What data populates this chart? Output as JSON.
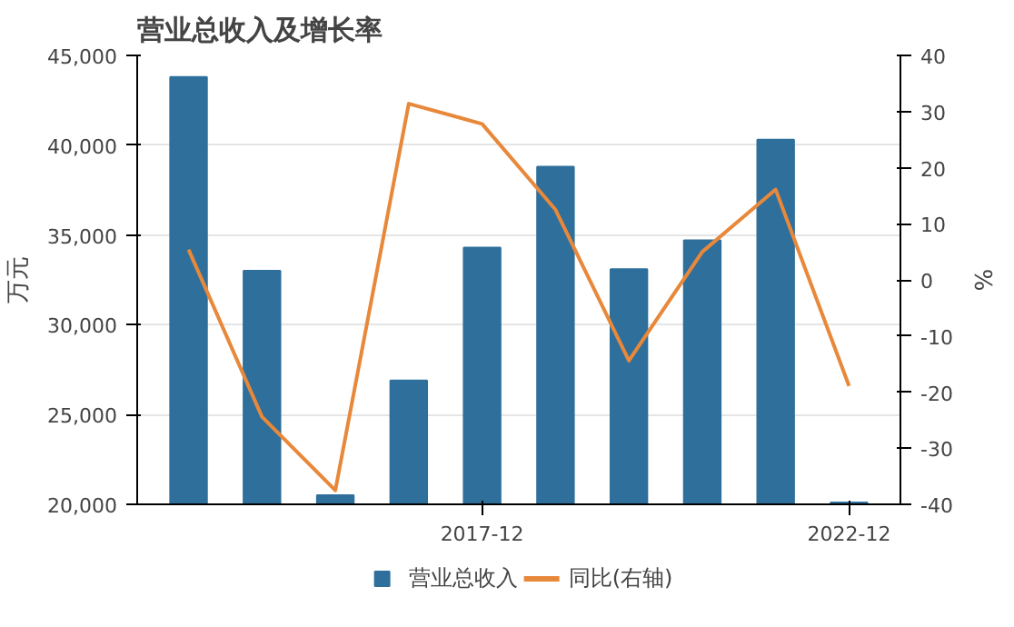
{
  "chart_data": {
    "type": "bar",
    "title": "营业总收入及增长率",
    "ylabel": "万元",
    "y2label": "%",
    "categories": [
      null,
      null,
      null,
      null,
      "2017-12",
      null,
      null,
      null,
      null,
      "2022-12"
    ],
    "series": [
      {
        "name": "营业总收入",
        "color": "#2e6f9b",
        "values": [
          43800,
          33000,
          20500,
          26900,
          34300,
          38800,
          33100,
          34700,
          40300,
          20100
        ]
      },
      {
        "name": "同比(右轴)",
        "type": "line",
        "axis": "y2",
        "color": "#e8883a",
        "values": [
          5.4,
          -24.4,
          -37.5,
          31.4,
          27.8,
          12.5,
          -14.4,
          5,
          16.1,
          -18.9
        ]
      }
    ],
    "ylim": [
      20000,
      45000
    ],
    "yticks": [
      {
        "value": 20000,
        "label": "20,000"
      },
      {
        "value": 25000,
        "label": "25,000"
      },
      {
        "value": 30000,
        "label": "30,000"
      },
      {
        "value": 35000,
        "label": "35,000"
      },
      {
        "value": 40000,
        "label": "40,000"
      },
      {
        "value": 45000,
        "label": "45,000"
      }
    ],
    "y2lim": [
      -40,
      40
    ],
    "y2ticks": [
      -40,
      -30,
      -20,
      -10,
      0,
      10,
      20,
      30,
      40
    ],
    "grid": "y",
    "legend": "bottom"
  }
}
